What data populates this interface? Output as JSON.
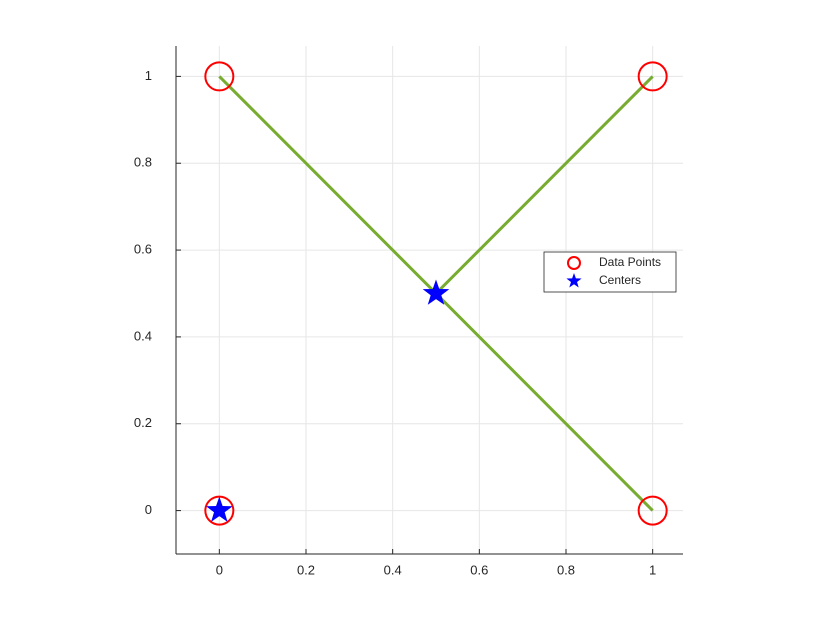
{
  "chart_data": {
    "type": "scatter",
    "series": [
      {
        "name": "Data Points",
        "color": "#ff0000",
        "marker": "circle",
        "x": [
          0,
          0,
          1,
          1
        ],
        "y": [
          0,
          1,
          1,
          0
        ]
      },
      {
        "name": "Centers",
        "color": "#0000ff",
        "marker": "star",
        "x": [
          0,
          0.5
        ],
        "y": [
          0,
          0.5
        ]
      }
    ],
    "segments": [
      {
        "color": "#77ac30",
        "x": [
          0.5,
          0
        ],
        "y": [
          0.5,
          1
        ]
      },
      {
        "color": "#77ac30",
        "x": [
          0.5,
          1
        ],
        "y": [
          0.5,
          1
        ]
      },
      {
        "color": "#77ac30",
        "x": [
          0.5,
          1
        ],
        "y": [
          0.5,
          0
        ]
      }
    ],
    "xlim": [
      -0.1,
      1.07
    ],
    "ylim": [
      -0.1,
      1.07
    ],
    "xticks": [
      0,
      0.2,
      0.4,
      0.6,
      0.8,
      1
    ],
    "yticks": [
      0,
      0.2,
      0.4,
      0.6,
      0.8,
      1
    ],
    "grid": true,
    "legend": "east"
  }
}
